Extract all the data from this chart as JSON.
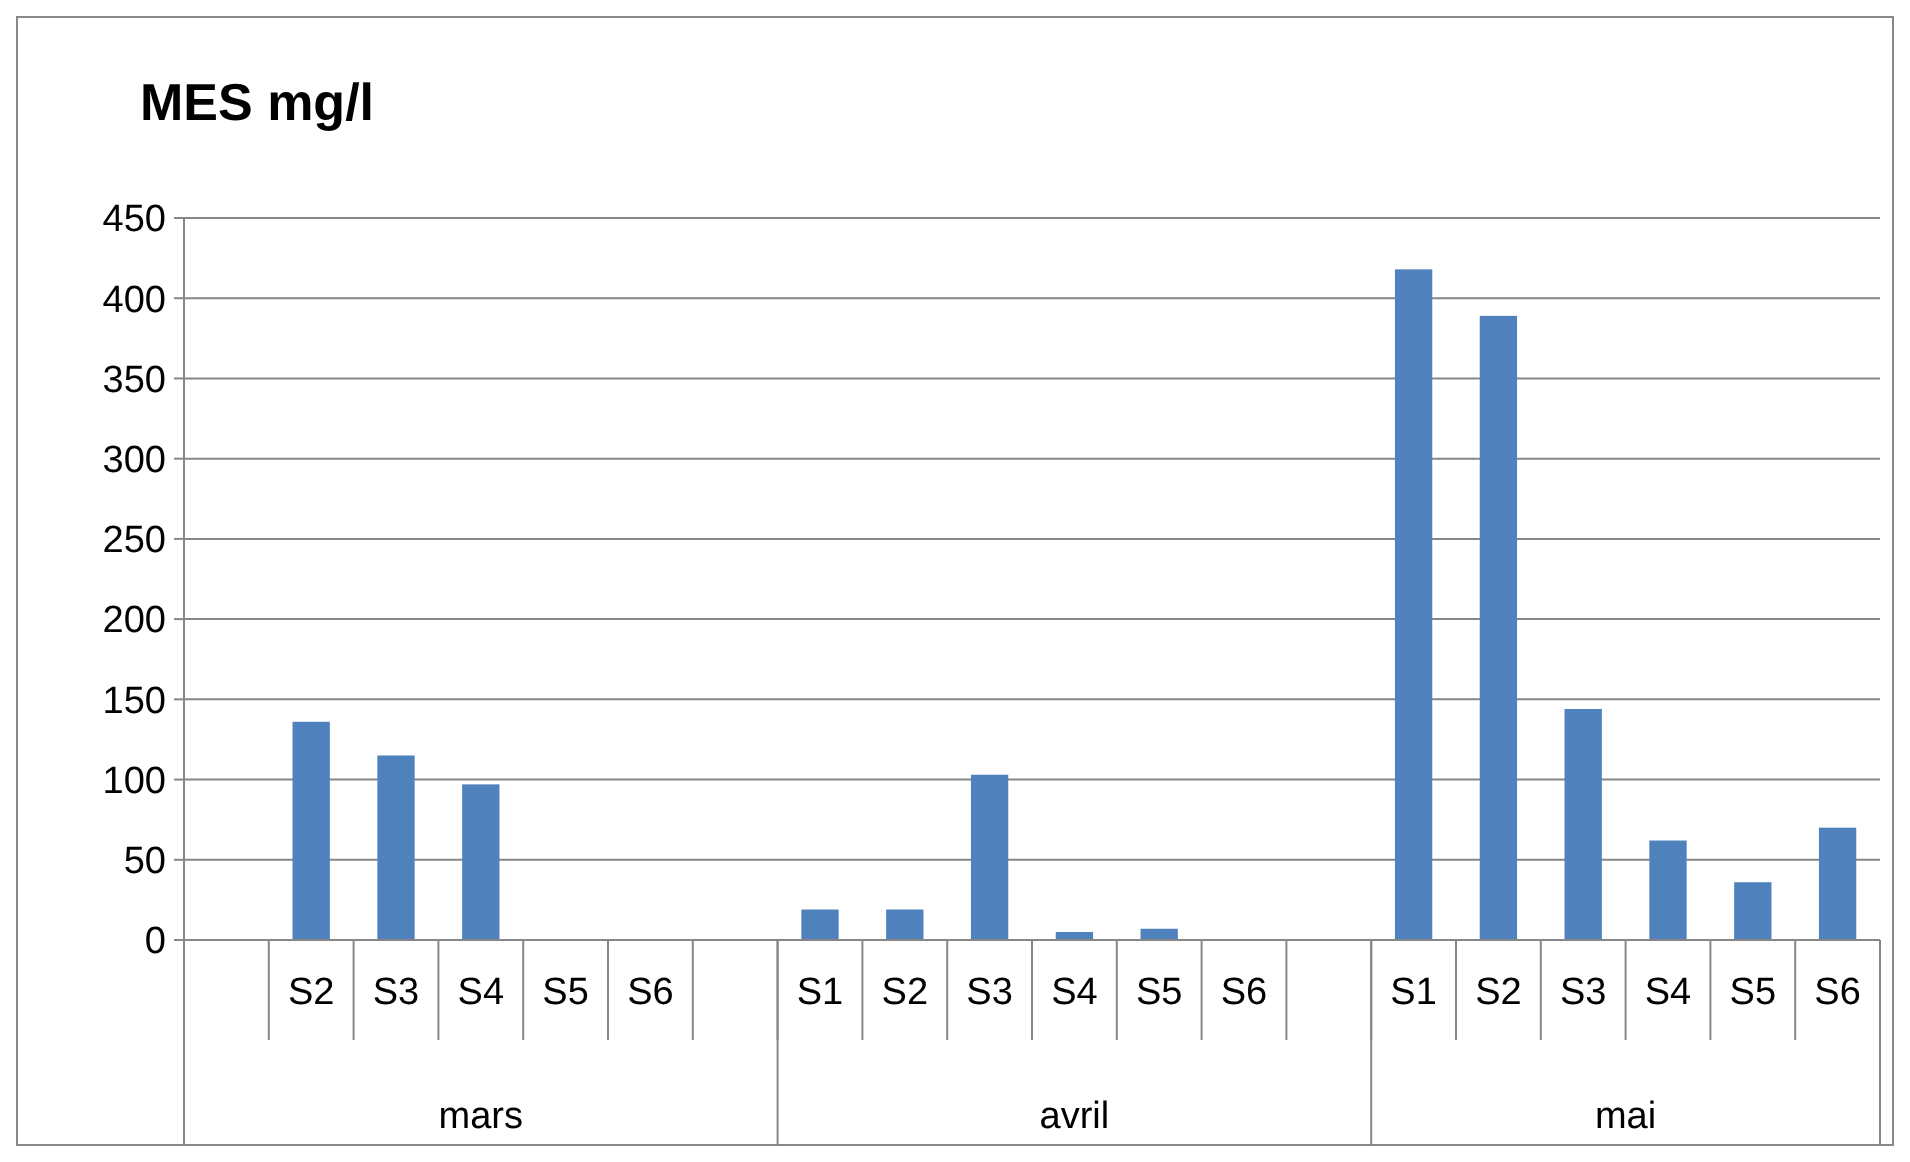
{
  "chart_data": {
    "type": "bar",
    "title": "MES mg/l",
    "categories": [
      null,
      "S2",
      "S3",
      "S4",
      "S5",
      "S6",
      null,
      "S1",
      "S2",
      "S3",
      "S4",
      "S5",
      "S6",
      null,
      "S1",
      "S2",
      "S3",
      "S4",
      "S5",
      "S6"
    ],
    "values": [
      null,
      136,
      115,
      97,
      null,
      null,
      null,
      19,
      19,
      103,
      5,
      7,
      null,
      null,
      418,
      389,
      144,
      62,
      36,
      70
    ],
    "color": "#4f81bd",
    "ylim": [
      0,
      450
    ],
    "yticks": [
      0,
      50,
      100,
      150,
      200,
      250,
      300,
      350,
      400,
      450
    ],
    "grid": "y",
    "annotations": [
      "mars",
      "avril",
      "mai"
    ]
  }
}
